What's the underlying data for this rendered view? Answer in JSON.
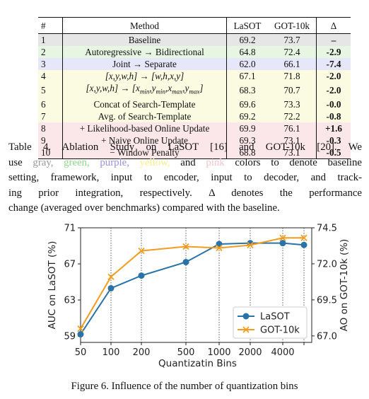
{
  "table": {
    "headers": [
      "#",
      "Method",
      "LaSOT",
      "GOT-10k",
      "Δ"
    ],
    "rows": [
      {
        "num": "1",
        "method": "Baseline",
        "lasot": "69.2",
        "got": "73.7",
        "delta": "–",
        "color": "gray"
      },
      {
        "num": "2",
        "method": "Autoregressive → Bidirectional",
        "lasot": "64.8",
        "got": "72.4",
        "delta": "-2.9",
        "color": "green"
      },
      {
        "num": "3",
        "method": "Joint → Separate",
        "lasot": "62.0",
        "got": "66.1",
        "delta": "-7.4",
        "color": "purple"
      },
      {
        "num": "4",
        "method": "[x,y,w,h] → [w,h,x,y]",
        "lasot": "67.1",
        "got": "71.8",
        "delta": "-2.0",
        "color": "yellow"
      },
      {
        "num": "5",
        "method": "[x,y,w,h] → [xmin,ymin,xmax,ymax]",
        "lasot": "68.3",
        "got": "70.7",
        "delta": "-2.0",
        "color": "yellow"
      },
      {
        "num": "6",
        "method": "Concat of Search-Template",
        "lasot": "69.6",
        "got": "73.3",
        "delta": "-0.0",
        "color": "yellow"
      },
      {
        "num": "7",
        "method": "Avg. of Search-Template",
        "lasot": "69.2",
        "got": "72.2",
        "delta": "-0.8",
        "color": "yellow"
      },
      {
        "num": "8",
        "method": "+ Likelihood-based Online Update",
        "lasot": "69.9",
        "got": "76.1",
        "delta": "+1.6",
        "color": "pink"
      },
      {
        "num": "9",
        "method": "+ Naive Online Update",
        "lasot": "69.3",
        "got": "73.1",
        "delta": "-0.3",
        "color": "pink"
      },
      {
        "num": "10",
        "method": "− Window Penalty",
        "lasot": "68.8",
        "got": "73.1",
        "delta": "-0.5",
        "color": "pink"
      }
    ]
  },
  "caption": {
    "l1a": "Table 4. Ablation Study on LaSOT [16] and GOT-10k [20]. We",
    "l2_use": "use",
    "l2_gray": "gray,",
    "l2_green": "green,",
    "l2_purple": "purple,",
    "l2_yellow": "yellow,",
    "l2_and": "and",
    "l2_pink": "pink",
    "l2_rest": "colors to denote baseline",
    "l3": "setting, framework, input to encoder, input to decoder, and track-",
    "l4": "ing prior integration, respectively.  Δ denotes the performance",
    "l5": "change (averaged over benchmarks) compared with the baseline."
  },
  "figure_caption": "Figure 6. Influence of the number of quantization bins",
  "colors": {
    "lasot": "#2a73a8",
    "got": "#f39c1f"
  },
  "chart_data": {
    "type": "line",
    "x_categories": [
      "50",
      "100",
      "200",
      "500",
      "1000",
      "2000",
      "4000",
      ""
    ],
    "xlabel": "Quantizatin Bins",
    "ylabel_left": "AUC on LaSOT (%)",
    "ylabel_right": "AO on GOT-10k (%)",
    "left_ticks": [
      "59",
      "63",
      "67",
      "71"
    ],
    "right_ticks": [
      "67.0",
      "69.5",
      "72.0",
      "74.5"
    ],
    "ylim_left": [
      58.3,
      71
    ],
    "ylim_right": [
      66.55,
      74.5
    ],
    "grid": "vertical dotted lines at each bin",
    "legend_position": "lower-right",
    "series": [
      {
        "name": "LaSOT",
        "axis": "left",
        "marker": "circle",
        "values": [
          59.2,
          64.3,
          65.7,
          67.2,
          69.2,
          69.3,
          69.3,
          69.1
        ]
      },
      {
        "name": "GOT-10k",
        "axis": "right",
        "marker": "x",
        "values": [
          67.5,
          71.1,
          72.9,
          73.2,
          73.1,
          73.3,
          73.8,
          73.8
        ]
      }
    ]
  }
}
